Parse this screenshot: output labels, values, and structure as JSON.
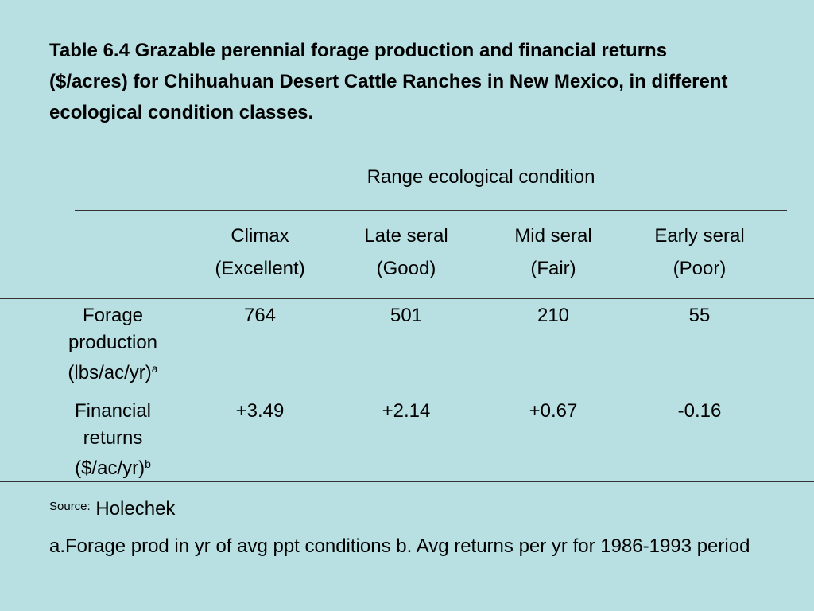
{
  "title": "Table 6.4 Grazable perennial forage production and financial returns ($/acres) for Chihuahuan Desert Cattle Ranches in New Mexico, in different ecological condition classes.",
  "table": {
    "group_header": "Range ecological condition",
    "columns": [
      {
        "name": "Climax",
        "class": "(Excellent)"
      },
      {
        "name": "Late seral",
        "class": "(Good)"
      },
      {
        "name": "Mid seral",
        "class": "(Fair)"
      },
      {
        "name": "Early seral",
        "class": "(Poor)"
      }
    ],
    "rows": [
      {
        "label": "Forage production",
        "unit": "(lbs/ac/yr)",
        "note": "a",
        "values": [
          "764",
          "501",
          "210",
          "55"
        ]
      },
      {
        "label": "Financial returns",
        "unit": "($/ac/yr)",
        "note": "b",
        "values": [
          "+3.49",
          "+2.14",
          "+0.67",
          "-0.16"
        ]
      }
    ]
  },
  "source": {
    "label": "Source:",
    "text": "Holechek"
  },
  "footnote": "a.Forage prod in yr of avg ppt conditions b. Avg returns per yr for 1986-1993 period"
}
